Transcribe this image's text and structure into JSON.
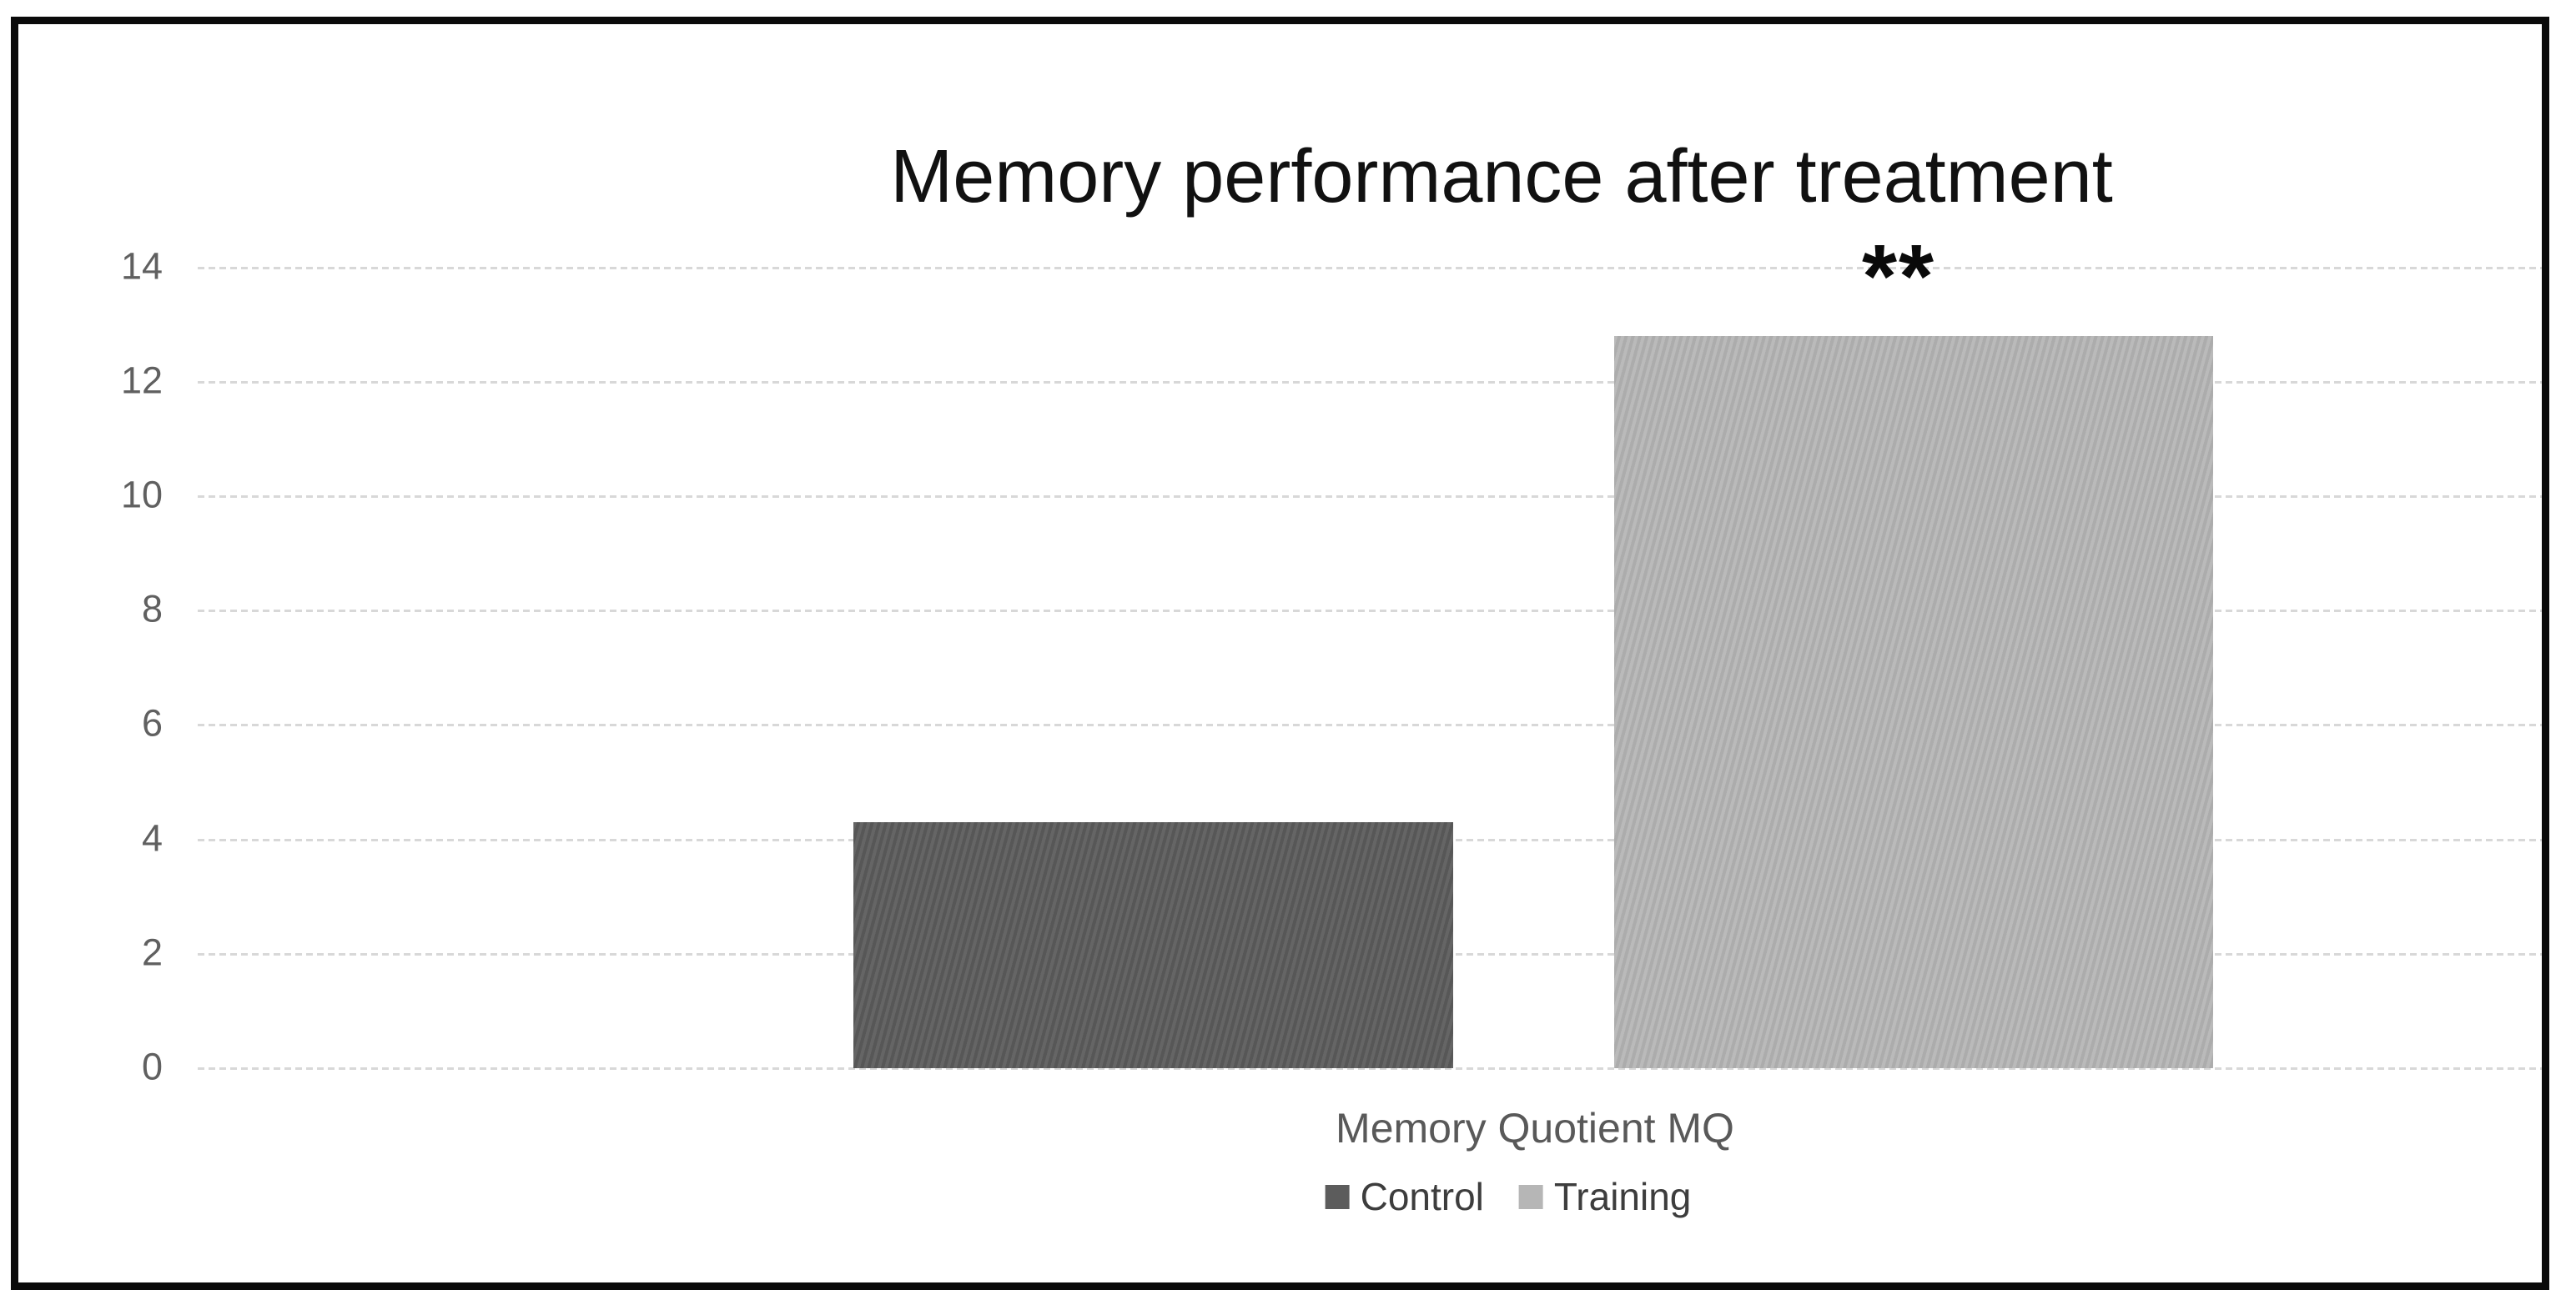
{
  "figure": {
    "title": "Memory performance after treatment",
    "significance_annotation": "**",
    "category_axis_label": "Memory Quotient MQ"
  },
  "chart_data": {
    "type": "bar",
    "title": "Memory performance after treatment",
    "categories": [
      "Memory Quotient MQ"
    ],
    "series": [
      {
        "name": "Control",
        "values": [
          4.3
        ],
        "color": "#5c5c5c"
      },
      {
        "name": "Training",
        "values": [
          12.8
        ],
        "color": "#b6b6b6"
      }
    ],
    "ylim": [
      0,
      14
    ],
    "yticks": [
      0,
      2,
      4,
      6,
      8,
      10,
      12,
      14
    ],
    "xlabel": "Memory Quotient MQ",
    "ylabel": "",
    "grid": "horizontal-dashed",
    "legend_position": "bottom",
    "annotations": [
      {
        "text": "**",
        "above_series": "Training"
      }
    ]
  },
  "colors": {
    "background": "#ffffff",
    "frame_border": "#0a0a0a",
    "gridline": "#d8d8d8",
    "tick_label": "#606060",
    "title_text": "#111111",
    "category_label": "#595959",
    "legend_text": "#3d3d3d",
    "annotation": "#0a0a0a",
    "control_bar": "#5c5c5c",
    "training_bar": "#b6b6b6"
  }
}
